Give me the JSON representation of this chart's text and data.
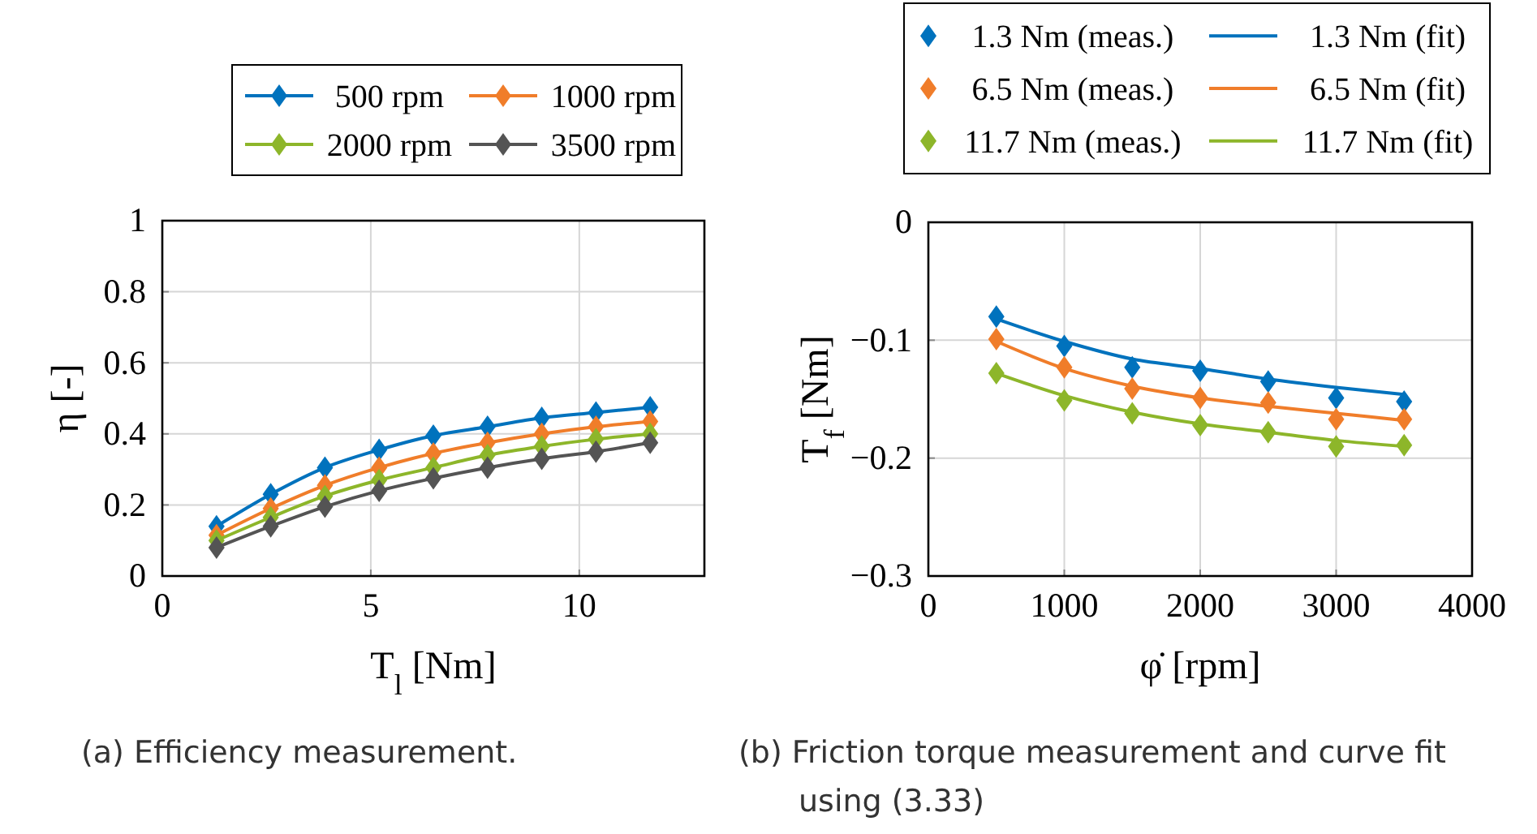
{
  "chart_data": [
    {
      "type": "line",
      "xlabel": "T$_{l}$ [Nm]",
      "ylabel": "η [-]",
      "x": [
        1.3,
        2.6,
        3.9,
        5.2,
        6.5,
        7.8,
        9.1,
        10.4,
        11.7
      ],
      "xlim": [
        0,
        13
      ],
      "xticks": [
        0,
        5,
        10
      ],
      "ylim": [
        0,
        1
      ],
      "yticks": [
        0,
        0.2,
        0.4,
        0.6,
        0.8,
        1
      ],
      "grid": true,
      "legend": "top",
      "marker": "diamond",
      "annotations": [
        "(a) Efficiency measurement."
      ],
      "series": [
        {
          "name": "500 rpm",
          "color": "#0072bd",
          "values": [
            0.14,
            0.23,
            0.305,
            0.355,
            0.395,
            0.42,
            0.445,
            0.46,
            0.475
          ]
        },
        {
          "name": "1000 rpm",
          "color": "#f07d2a",
          "values": [
            0.115,
            0.19,
            0.255,
            0.305,
            0.345,
            0.375,
            0.4,
            0.42,
            0.435
          ]
        },
        {
          "name": "2000 rpm",
          "color": "#8db62a",
          "values": [
            0.1,
            0.165,
            0.225,
            0.27,
            0.305,
            0.34,
            0.365,
            0.385,
            0.4
          ]
        },
        {
          "name": "3500 rpm",
          "color": "#545454",
          "values": [
            0.08,
            0.14,
            0.195,
            0.24,
            0.275,
            0.305,
            0.33,
            0.35,
            0.375
          ]
        }
      ]
    },
    {
      "type": "line",
      "xlabel": "φ̇ [rpm]",
      "ylabel": "T$_{f}$ [Nm]",
      "x": [
        500,
        1000,
        1500,
        2000,
        2500,
        3000,
        3500
      ],
      "xlim": [
        0,
        4000
      ],
      "xticks": [
        0,
        1000,
        2000,
        3000,
        4000
      ],
      "ylim": [
        -0.3,
        0
      ],
      "yticks": [
        -0.3,
        -0.2,
        -0.1,
        0
      ],
      "grid": true,
      "legend": "top",
      "marker": "diamond",
      "annotations": [
        "(b) Friction torque measurement and curve fit using (3.33)"
      ],
      "series": [
        {
          "name": "1.3 Nm (meas.)",
          "type": "scatter",
          "color": "#0072bd",
          "values": [
            -0.08,
            -0.105,
            -0.123,
            -0.126,
            -0.135,
            -0.149,
            -0.152
          ]
        },
        {
          "name": "1.3 Nm (fit)",
          "type": "line",
          "marker": "none",
          "color": "#0072bd",
          "values": [
            -0.082,
            -0.101,
            -0.116,
            -0.124,
            -0.133,
            -0.14,
            -0.146
          ]
        },
        {
          "name": "6.5 Nm (meas.)",
          "type": "scatter",
          "color": "#f07d2a",
          "values": [
            -0.099,
            -0.123,
            -0.141,
            -0.149,
            -0.153,
            -0.167,
            -0.167
          ]
        },
        {
          "name": "6.5 Nm (fit)",
          "type": "line",
          "marker": "none",
          "color": "#f07d2a",
          "values": [
            -0.101,
            -0.124,
            -0.139,
            -0.149,
            -0.156,
            -0.162,
            -0.168
          ]
        },
        {
          "name": "11.7 Nm (meas.)",
          "type": "scatter",
          "color": "#8db62a",
          "values": [
            -0.128,
            -0.151,
            -0.162,
            -0.172,
            -0.178,
            -0.19,
            -0.189
          ]
        },
        {
          "name": "11.7 Nm (fit)",
          "type": "line",
          "marker": "none",
          "color": "#8db62a",
          "values": [
            -0.128,
            -0.147,
            -0.161,
            -0.171,
            -0.178,
            -0.185,
            -0.19
          ]
        }
      ]
    }
  ]
}
